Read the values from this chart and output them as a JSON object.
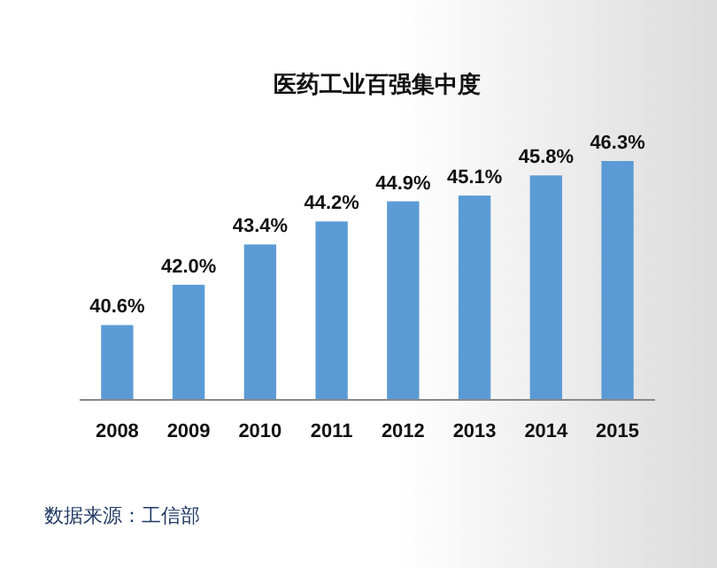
{
  "chart_data": {
    "type": "bar",
    "title": "医药工业百强集中度",
    "categories": [
      "2008",
      "2009",
      "2010",
      "2011",
      "2012",
      "2013",
      "2014",
      "2015"
    ],
    "values": [
      40.6,
      42.0,
      43.4,
      44.2,
      44.9,
      45.1,
      45.8,
      46.3
    ],
    "value_labels": [
      "40.6%",
      "42.0%",
      "43.4%",
      "44.2%",
      "44.9%",
      "45.1%",
      "45.8%",
      "46.3%"
    ],
    "color": "#5b9bd5",
    "ylim": [
      38,
      46.3
    ],
    "tick_labels": "x",
    "grid": false,
    "annotations": [
      "数据来源：工信部"
    ]
  }
}
